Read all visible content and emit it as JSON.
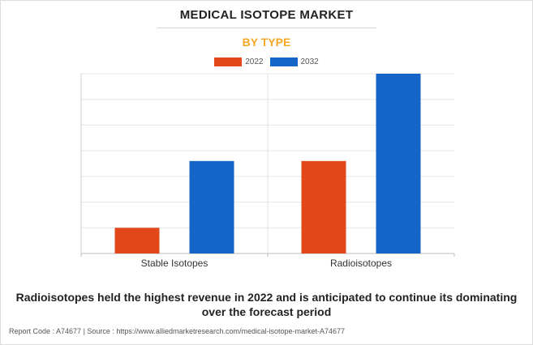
{
  "header": {
    "title": "MEDICAL ISOTOPE MARKET",
    "subtitle": "BY TYPE"
  },
  "colors": {
    "series_2022": "#e2481a",
    "series_2032": "#1565c8",
    "subtitle": "#f5a623",
    "grid": "#e6e6e6"
  },
  "chart_data": {
    "type": "bar",
    "categories": [
      "Stable Isotopes",
      "Radioisotopes"
    ],
    "series": [
      {
        "name": "2022",
        "values": [
          1.0,
          3.6
        ]
      },
      {
        "name": "2032",
        "values": [
          3.6,
          7.0
        ]
      }
    ],
    "ylim": [
      0,
      7.0
    ],
    "y_gridlines": 7,
    "grid": true,
    "legend": "top-center",
    "y_tick_labels_shown": false,
    "title": "",
    "xlabel": "",
    "ylabel": ""
  },
  "caption": {
    "line1": "Radioisotopes held the highest revenue in 2022 and is anticipated to continue its dominating",
    "line2": "over the forecast period"
  },
  "footer": {
    "text": "Report Code : A74677  |  Source : https://www.alliedmarketresearch.com/medical-isotope-market-A74677"
  }
}
